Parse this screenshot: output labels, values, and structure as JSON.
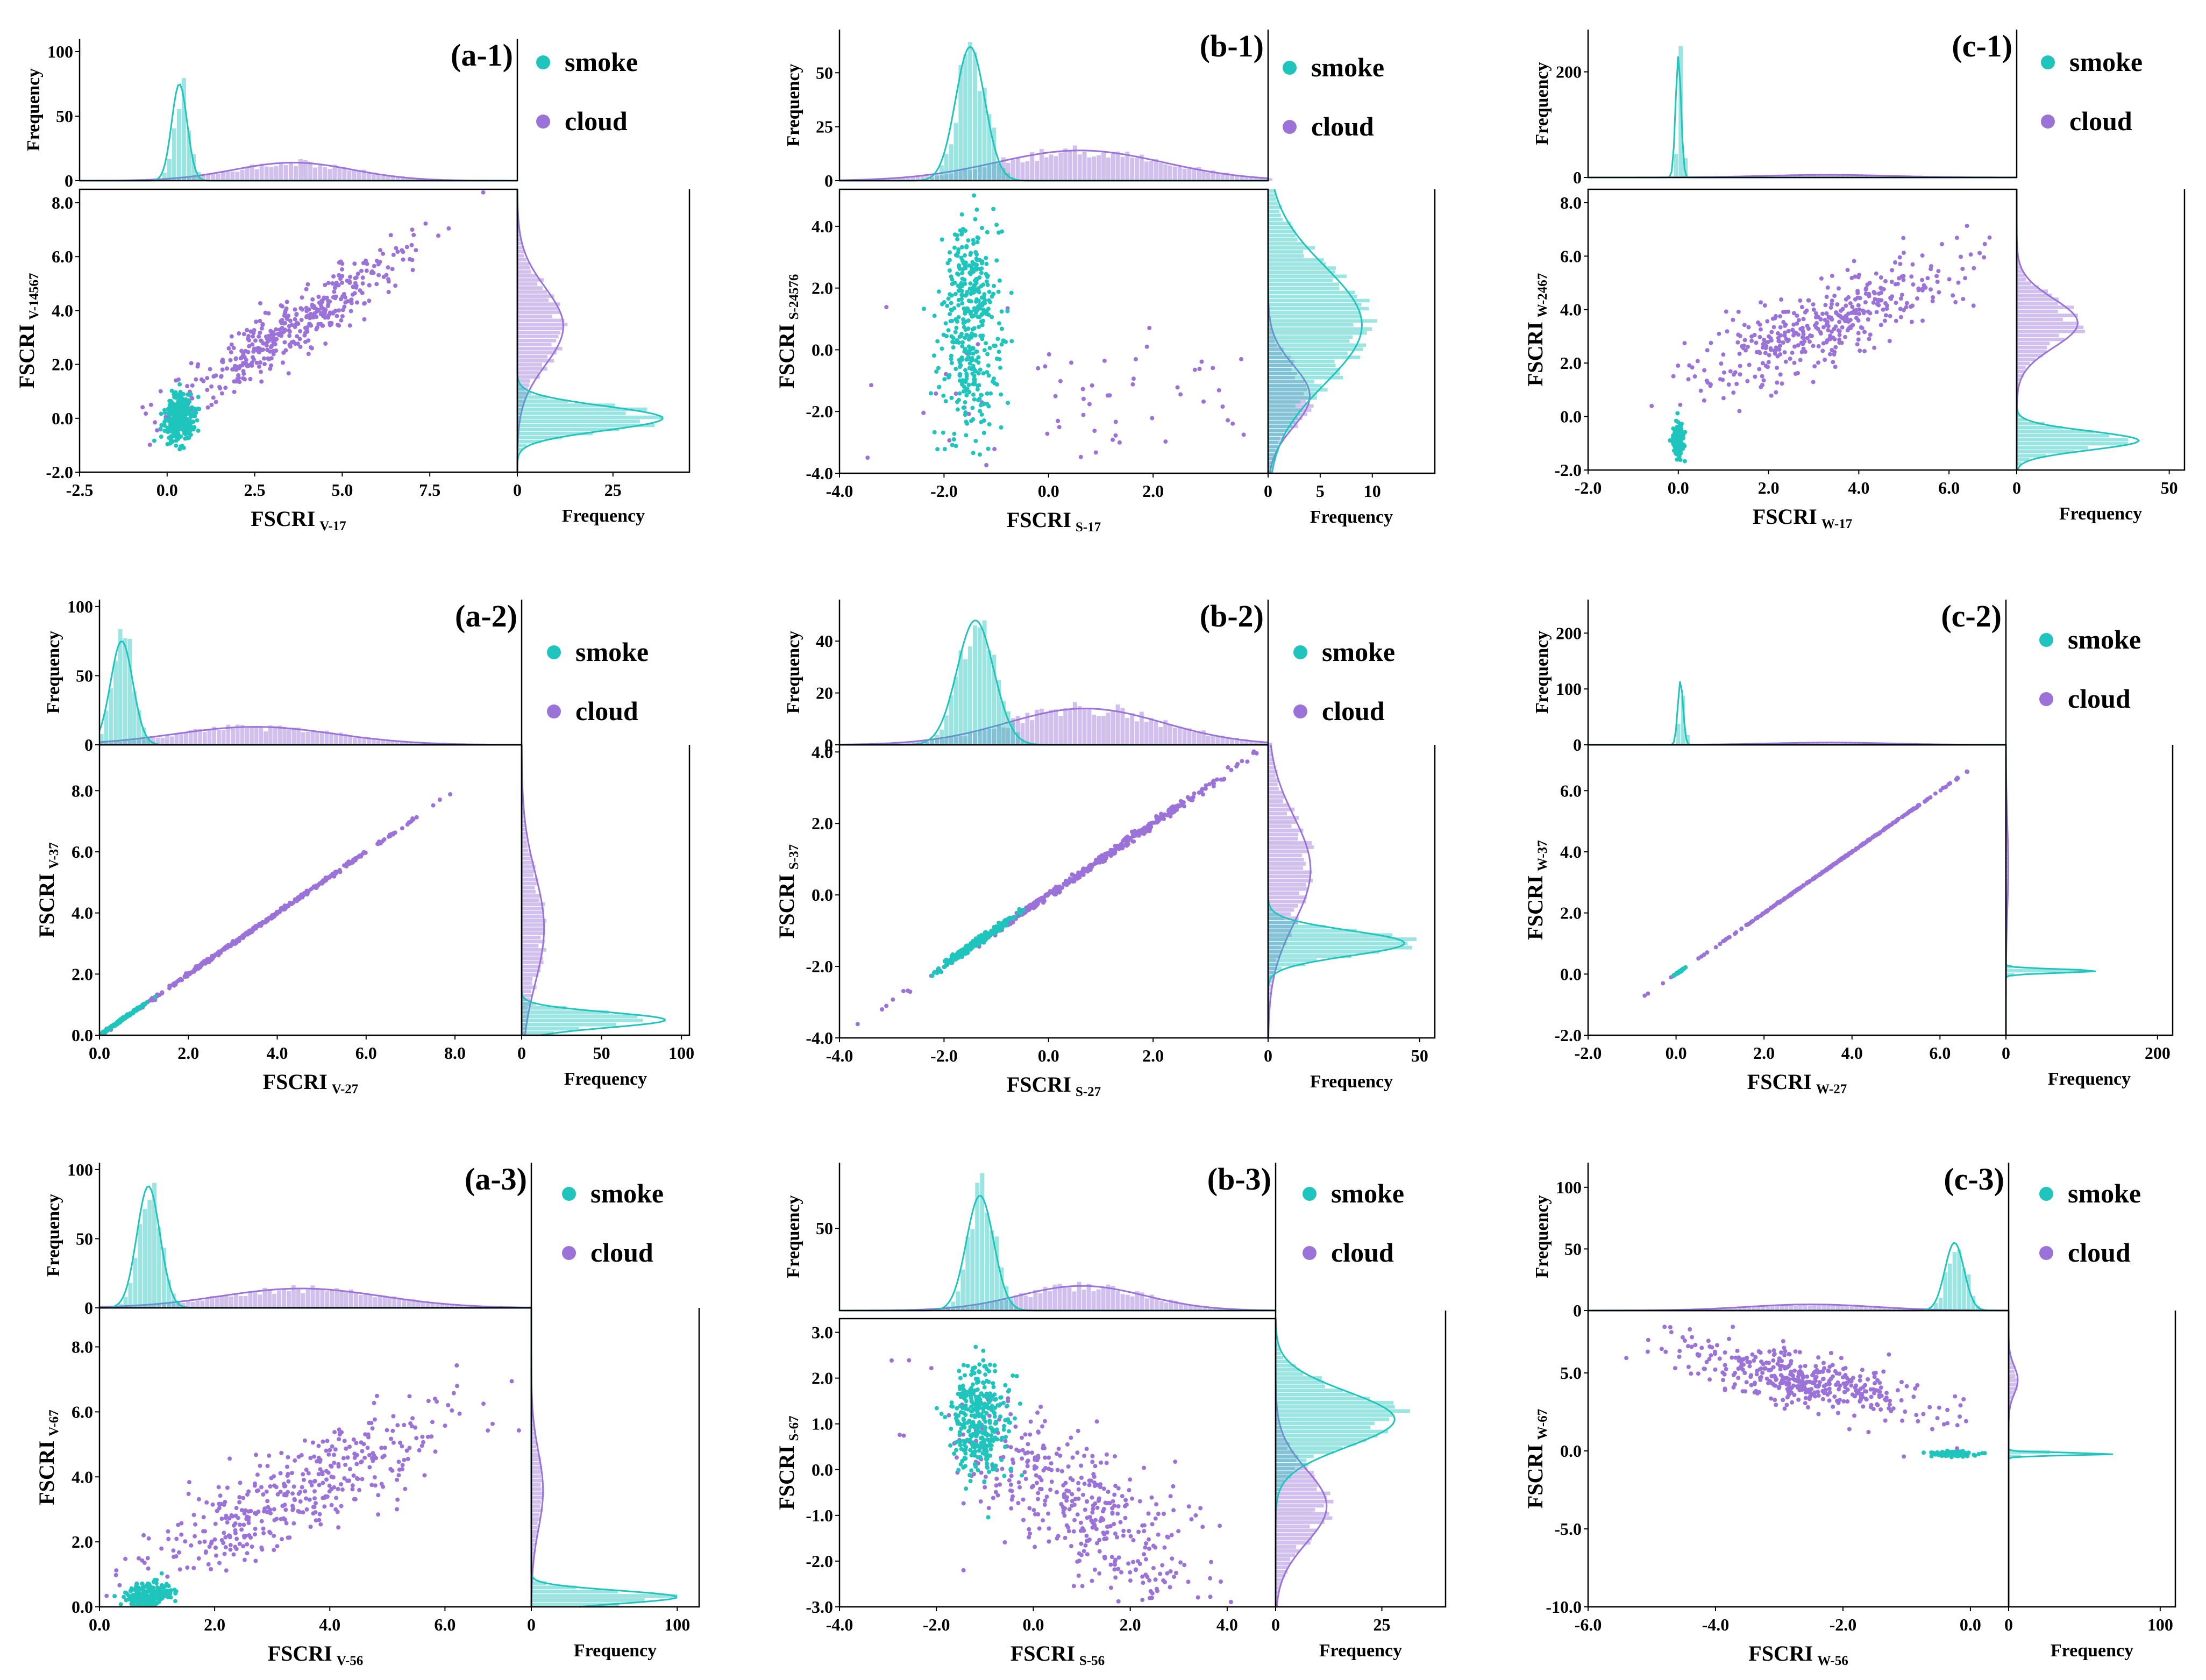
{
  "colors": {
    "smoke": "#1fc5bd",
    "cloud": "#9a72d8"
  },
  "chart_data": [
    {
      "id": "a1",
      "type": "scatter",
      "panel_label": "(a-1)",
      "legend": [
        "smoke",
        "cloud"
      ],
      "xlabel": {
        "main": "FSCRI",
        "sub": "V-17"
      },
      "ylabel": {
        "main": "FSCRI",
        "sub": "V-14567"
      },
      "xlim": [
        -2.5,
        10.0
      ],
      "xticks": [
        "-2.5",
        "0.0",
        "2.5",
        "5.0",
        "7.5"
      ],
      "xtick_vals": [
        -2.5,
        0.0,
        2.5,
        5.0,
        7.5
      ],
      "ylim": [
        -2.0,
        8.5
      ],
      "yticks": [
        "-2.0",
        "0.0",
        "2.0",
        "4.0",
        "6.0",
        "8.0"
      ],
      "ytick_vals": [
        -2,
        0,
        2,
        4,
        6,
        8
      ],
      "top_hist": {
        "ylabel": "Frequency",
        "ymax": 110,
        "yticks": [
          "0",
          "50",
          "100"
        ],
        "ytick_vals": [
          0,
          50,
          100
        ]
      },
      "right_hist": {
        "xlabel": "Frequency",
        "xmax": 45,
        "xticks": [
          "0",
          "25"
        ],
        "xtick_vals": [
          0,
          25
        ]
      },
      "smoke": {
        "x_mean": 0.35,
        "x_sd": 0.22,
        "y_mean": 0.0,
        "y_sd": 0.45,
        "slope": 0.0,
        "n": 320,
        "top_peak": 75,
        "right_peak": 38
      },
      "cloud": {
        "x_mean": 3.6,
        "x_sd": 1.7,
        "y_mean": 3.2,
        "y_sd": 1.5,
        "slope": 0.85,
        "intercept": 0.35,
        "noise": 0.55,
        "n": 420,
        "top_peak": 14,
        "right_peak": 12
      }
    },
    {
      "id": "b1",
      "type": "scatter",
      "panel_label": "(b-1)",
      "legend": [
        "smoke",
        "cloud"
      ],
      "xlabel": {
        "main": "FSCRI",
        "sub": "S-17"
      },
      "ylabel": {
        "main": "FSCRI",
        "sub": "S-24576"
      },
      "xlim": [
        -4.0,
        4.2
      ],
      "xticks": [
        "-4.0",
        "-2.0",
        "0.0",
        "2.0"
      ],
      "xtick_vals": [
        -4,
        -2,
        0,
        2
      ],
      "ylim": [
        -4.0,
        5.2
      ],
      "yticks": [
        "-4.0",
        "-2.0",
        "0.0",
        "2.0",
        "4.0"
      ],
      "ytick_vals": [
        -4,
        -2,
        0,
        2,
        4
      ],
      "top_hist": {
        "ylabel": "Frequency",
        "ymax": 70,
        "yticks": [
          "0",
          "25",
          "50"
        ],
        "ytick_vals": [
          0,
          25,
          50
        ]
      },
      "right_hist": {
        "xlabel": "Frequency",
        "xmax": 16,
        "xticks": [
          "0",
          "5",
          "10"
        ],
        "xtick_vals": [
          0,
          5,
          10
        ]
      },
      "smoke": {
        "x_mean": -1.5,
        "x_sd": 0.28,
        "y_mean": 0.8,
        "y_sd": 1.9,
        "slope": -0.1,
        "n": 420,
        "top_peak": 62,
        "right_peak": 9
      },
      "cloud": {
        "x_mean": 0.6,
        "x_sd": 1.6,
        "y_mean": -1.5,
        "y_sd": 1.0,
        "slope": 0.0,
        "n": 60,
        "top_peak": 14,
        "right_peak": 4
      }
    },
    {
      "id": "c1",
      "type": "scatter",
      "panel_label": "(c-1)",
      "legend": [
        "smoke",
        "cloud"
      ],
      "xlabel": {
        "main": "FSCRI",
        "sub": "W-17"
      },
      "ylabel": {
        "main": "FSCRI",
        "sub": "W-2467"
      },
      "xlim": [
        -2.0,
        7.5
      ],
      "xticks": [
        "-2.0",
        "0.0",
        "2.0",
        "4.0",
        "6.0"
      ],
      "xtick_vals": [
        -2,
        0,
        2,
        4,
        6
      ],
      "ylim": [
        -2.0,
        8.5
      ],
      "yticks": [
        "-2.0",
        "0.0",
        "2.0",
        "4.0",
        "6.0",
        "8.0"
      ],
      "ytick_vals": [
        -2,
        0,
        2,
        4,
        6,
        8
      ],
      "top_hist": {
        "ylabel": "Frequency",
        "ymax": 280,
        "yticks": [
          "0",
          "200"
        ],
        "ytick_vals": [
          0,
          200
        ]
      },
      "right_hist": {
        "xlabel": "Frequency",
        "xmax": 55,
        "xticks": [
          "0",
          "50"
        ],
        "xtick_vals": [
          0,
          50
        ]
      },
      "smoke": {
        "x_mean": 0.0,
        "x_sd": 0.06,
        "y_mean": -0.9,
        "y_sd": 0.35,
        "slope": 0.0,
        "n": 150,
        "top_peak": 230,
        "right_peak": 40
      },
      "cloud": {
        "x_mean": 3.3,
        "x_sd": 1.4,
        "y_mean": 3.5,
        "y_sd": 1.2,
        "slope": 0.65,
        "intercept": 1.35,
        "noise": 0.7,
        "n": 420,
        "top_peak": 5,
        "right_peak": 20
      }
    },
    {
      "id": "a2",
      "type": "scatter",
      "panel_label": "(a-2)",
      "legend": [
        "smoke",
        "cloud"
      ],
      "xlabel": {
        "main": "FSCRI",
        "sub": "V-27"
      },
      "ylabel": {
        "main": "FSCRI",
        "sub": "V-37"
      },
      "xlim": [
        0.0,
        9.5
      ],
      "xticks": [
        "0.0",
        "2.0",
        "4.0",
        "6.0",
        "8.0"
      ],
      "xtick_vals": [
        0,
        2,
        4,
        6,
        8
      ],
      "ylim": [
        0.0,
        9.5
      ],
      "yticks": [
        "0.0",
        "2.0",
        "4.0",
        "6.0",
        "8.0"
      ],
      "ytick_vals": [
        0,
        2,
        4,
        6,
        8
      ],
      "top_hist": {
        "ylabel": "Frequency",
        "ymax": 105,
        "yticks": [
          "0",
          "50",
          "100"
        ],
        "ytick_vals": [
          0,
          50,
          100
        ]
      },
      "right_hist": {
        "xlabel": "Frequency",
        "xmax": 105,
        "xticks": [
          "0",
          "50",
          "100"
        ],
        "xtick_vals": [
          0,
          50,
          100
        ]
      },
      "smoke": {
        "x_mean": 0.5,
        "x_sd": 0.25,
        "y_mean": 0.5,
        "y_sd": 0.25,
        "slope": 1.0,
        "intercept": 0.0,
        "noise": 0.02,
        "n": 200,
        "top_peak": 75,
        "right_peak": 90
      },
      "cloud": {
        "x_mean": 3.5,
        "x_sd": 1.8,
        "y_mean": 3.5,
        "y_sd": 1.8,
        "slope": 1.0,
        "intercept": 0.0,
        "noise": 0.03,
        "n": 420,
        "top_peak": 13,
        "right_peak": 14
      }
    },
    {
      "id": "b2",
      "type": "scatter",
      "panel_label": "(b-2)",
      "legend": [
        "smoke",
        "cloud"
      ],
      "xlabel": {
        "main": "FSCRI",
        "sub": "S-27"
      },
      "ylabel": {
        "main": "FSCRI",
        "sub": "S-37"
      },
      "xlim": [
        -4.0,
        4.2
      ],
      "xticks": [
        "-4.0",
        "-2.0",
        "0.0",
        "2.0"
      ],
      "xtick_vals": [
        -4,
        -2,
        0,
        2
      ],
      "ylim": [
        -4.0,
        4.2
      ],
      "yticks": [
        "-4.0",
        "-2.0",
        "0.0",
        "2.0",
        "4.0"
      ],
      "ytick_vals": [
        -4,
        -2,
        0,
        2,
        4
      ],
      "top_hist": {
        "ylabel": "Frequency",
        "ymax": 56,
        "yticks": [
          "0",
          "20",
          "40"
        ],
        "ytick_vals": [
          0,
          20,
          40
        ]
      },
      "right_hist": {
        "xlabel": "Frequency",
        "xmax": 55,
        "xticks": [
          "0",
          "50"
        ],
        "xtick_vals": [
          0,
          50
        ]
      },
      "smoke": {
        "x_mean": -1.4,
        "x_sd": 0.35,
        "y_mean": -1.3,
        "y_sd": 0.33,
        "slope": 1.0,
        "intercept": 0.05,
        "noise": 0.06,
        "n": 260,
        "top_peak": 48,
        "right_peak": 45
      },
      "cloud": {
        "x_mean": 0.7,
        "x_sd": 1.5,
        "y_mean": 0.7,
        "y_sd": 1.5,
        "slope": 1.0,
        "intercept": 0.0,
        "noise": 0.06,
        "n": 420,
        "top_peak": 14,
        "right_peak": 14
      }
    },
    {
      "id": "c2",
      "type": "scatter",
      "panel_label": "(c-2)",
      "legend": [
        "smoke",
        "cloud"
      ],
      "xlabel": {
        "main": "FSCRI",
        "sub": "W-27"
      },
      "ylabel": {
        "main": "FSCRI",
        "sub": "W-37"
      },
      "xlim": [
        -2.0,
        7.5
      ],
      "xticks": [
        "-2.0",
        "0.0",
        "2.0",
        "4.0",
        "6.0"
      ],
      "xtick_vals": [
        -2,
        0,
        2,
        4,
        6
      ],
      "ylim": [
        -2.0,
        7.5
      ],
      "yticks": [
        "-2.0",
        "0.0",
        "2.0",
        "4.0",
        "6.0"
      ],
      "ytick_vals": [
        -2,
        0,
        2,
        4,
        6
      ],
      "top_hist": {
        "ylabel": "Frequency",
        "ymax": 260,
        "yticks": [
          "0",
          "100",
          "200"
        ],
        "ytick_vals": [
          0,
          100,
          200
        ]
      },
      "right_hist": {
        "xlabel": "Frequency",
        "xmax": 220,
        "xticks": [
          "0",
          "200"
        ],
        "xtick_vals": [
          0,
          200
        ]
      },
      "smoke": {
        "x_mean": 0.1,
        "x_sd": 0.06,
        "y_mean": 0.1,
        "y_sd": 0.06,
        "slope": 1.0,
        "intercept": 0.0,
        "noise": 0.01,
        "n": 60,
        "top_peak": 115,
        "right_peak": 120
      },
      "cloud": {
        "x_mean": 3.5,
        "x_sd": 1.4,
        "y_mean": 3.5,
        "y_sd": 1.4,
        "slope": 1.0,
        "intercept": 0.0,
        "noise": 0.01,
        "n": 300,
        "top_peak": 4,
        "right_peak": 3
      }
    },
    {
      "id": "a3",
      "type": "scatter",
      "panel_label": "(a-3)",
      "legend": [
        "smoke",
        "cloud"
      ],
      "xlabel": {
        "main": "FSCRI",
        "sub": "V-56"
      },
      "ylabel": {
        "main": "FSCRI",
        "sub": "V-67"
      },
      "xlim": [
        0.0,
        7.5
      ],
      "xticks": [
        "0.0",
        "2.0",
        "4.0",
        "6.0"
      ],
      "xtick_vals": [
        0,
        2,
        4,
        6
      ],
      "ylim": [
        0.0,
        9.2
      ],
      "yticks": [
        "0.0",
        "2.0",
        "4.0",
        "6.0",
        "8.0"
      ],
      "ytick_vals": [
        0,
        2,
        4,
        6,
        8
      ],
      "top_hist": {
        "ylabel": "Frequency",
        "ymax": 105,
        "yticks": [
          "0",
          "50",
          "100"
        ],
        "ytick_vals": [
          0,
          50,
          100
        ]
      },
      "right_hist": {
        "xlabel": "Frequency",
        "xmax": 115,
        "xticks": [
          "0",
          "100"
        ],
        "xtick_vals": [
          0,
          100
        ]
      },
      "smoke": {
        "x_mean": 0.85,
        "x_sd": 0.2,
        "y_mean": 0.3,
        "y_sd": 0.2,
        "slope": 0.3,
        "n": 260,
        "top_peak": 88,
        "right_peak": 100
      },
      "cloud": {
        "x_mean": 3.5,
        "x_sd": 1.4,
        "y_mean": 3.6,
        "y_sd": 1.4,
        "slope": 0.85,
        "intercept": 0.6,
        "noise": 0.75,
        "n": 420,
        "top_peak": 14,
        "right_peak": 8
      }
    },
    {
      "id": "b3",
      "type": "scatter",
      "panel_label": "(b-3)",
      "legend": [
        "smoke",
        "cloud"
      ],
      "xlabel": {
        "main": "FSCRI",
        "sub": "S-56"
      },
      "ylabel": {
        "main": "FSCRI",
        "sub": "S-67"
      },
      "xlim": [
        -4.0,
        5.0
      ],
      "xticks": [
        "-4.0",
        "-2.0",
        "0.0",
        "2.0",
        "4.0"
      ],
      "xtick_vals": [
        -4,
        -2,
        0,
        2,
        4
      ],
      "ylim": [
        -3.0,
        3.3
      ],
      "yticks": [
        "-3.0",
        "-2.0",
        "-1.0",
        "0.0",
        "1.0",
        "2.0",
        "3.0"
      ],
      "ytick_vals": [
        -3,
        -2,
        -1,
        0,
        1,
        2,
        3
      ],
      "top_hist": {
        "ylabel": "Frequency",
        "ymax": 90,
        "yticks": [
          "50"
        ],
        "ytick_vals": [
          50
        ]
      },
      "right_hist": {
        "xlabel": "Frequency",
        "xmax": 40,
        "xticks": [
          "0",
          "25"
        ],
        "xtick_vals": [
          0,
          25
        ]
      },
      "smoke": {
        "x_mean": -1.1,
        "x_sd": 0.28,
        "y_mean": 1.1,
        "y_sd": 0.6,
        "slope": 0.0,
        "n": 340,
        "top_peak": 70,
        "right_peak": 28
      },
      "cloud": {
        "x_mean": 1.0,
        "x_sd": 1.3,
        "y_mean": -0.8,
        "y_sd": 1.0,
        "slope": -0.6,
        "intercept": -0.2,
        "noise": 0.8,
        "n": 420,
        "top_peak": 15,
        "right_peak": 12
      }
    },
    {
      "id": "c3",
      "type": "scatter",
      "panel_label": "(c-3)",
      "legend": [
        "smoke",
        "cloud"
      ],
      "xlabel": {
        "main": "FSCRI",
        "sub": "W-56"
      },
      "ylabel": {
        "main": "FSCRI",
        "sub": "W-67"
      },
      "xlim": [
        -6.0,
        0.6
      ],
      "xticks": [
        "-6.0",
        "-4.0",
        "-2.0",
        "0.0"
      ],
      "xtick_vals": [
        -6,
        -4,
        -2,
        0
      ],
      "ylim": [
        -10.0,
        9.0
      ],
      "yticks": [
        "-10.0",
        "-5.0",
        "0.0",
        "5.0"
      ],
      "ytick_vals": [
        -10,
        -5,
        0,
        5
      ],
      "top_hist": {
        "ylabel": "Frequency",
        "ymax": 120,
        "yticks": [
          "0",
          "50",
          "100"
        ],
        "ytick_vals": [
          0,
          50,
          100
        ]
      },
      "right_hist": {
        "xlabel": "Frequency",
        "xmax": 110,
        "xticks": [
          "0",
          "100"
        ],
        "xtick_vals": [
          0,
          100
        ]
      },
      "smoke": {
        "x_mean": -0.25,
        "x_sd": 0.15,
        "y_mean": -0.2,
        "y_sd": 0.08,
        "slope": 0.0,
        "n": 120,
        "top_peak": 55,
        "right_peak": 70
      },
      "cloud": {
        "x_mean": -2.5,
        "x_sd": 1.0,
        "y_mean": 4.0,
        "y_sd": 1.0,
        "slope": -0.9,
        "intercept": 2.3,
        "noise": 0.9,
        "n": 420,
        "top_peak": 5,
        "right_peak": 6
      }
    }
  ]
}
